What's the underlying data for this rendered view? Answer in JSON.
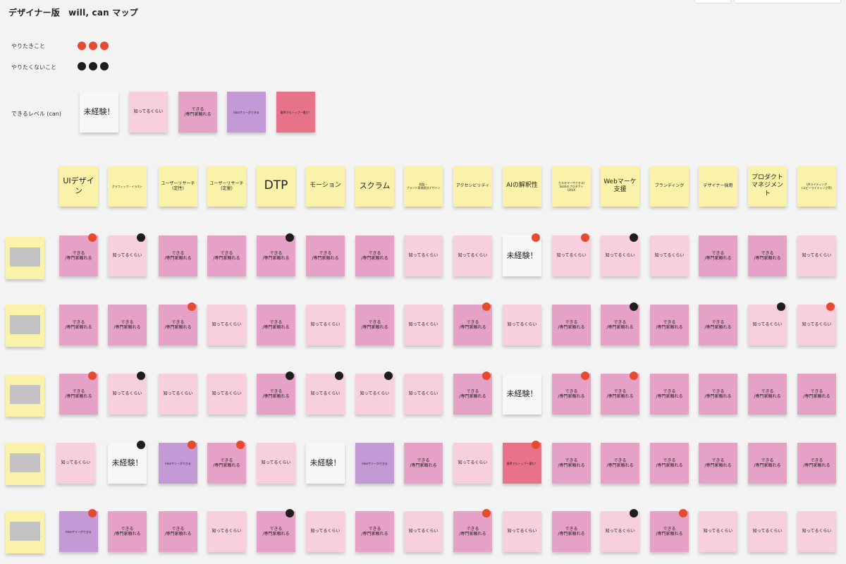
{
  "board": {
    "title": "デザイナー版　will, can マップ"
  },
  "legend": {
    "will": {
      "label": "やりたきこと"
    },
    "wont": {
      "label": "やりたくないこと"
    },
    "can": {
      "label": "できるレベル (can)"
    }
  },
  "levels": [
    {
      "text": "未経験！",
      "color": "white"
    },
    {
      "text": "知ってるくらい",
      "color": "light"
    },
    {
      "text": "できる\n/専門家頼れる",
      "color": "mid"
    },
    {
      "text": "Ideaサリーができる",
      "color": "purple"
    },
    {
      "text": "業界でもトップ一番だ！",
      "color": "red"
    }
  ],
  "skills": [
    {
      "text": "UIデザイン",
      "size": "big"
    },
    {
      "text": "グラフィック・イラスト",
      "size": "tiny"
    },
    {
      "text": "ユーザーリサーチ\n(定性)",
      "size": "small"
    },
    {
      "text": "ユーザーリサーチ\n(定量)",
      "size": "small"
    },
    {
      "text": "DTP",
      "size": "huge"
    },
    {
      "text": "モーション",
      "size": "med"
    },
    {
      "text": "スクラム",
      "size": "big"
    },
    {
      "text": "既製・\nブランド表現設計デザイン",
      "size": "tiny"
    },
    {
      "text": "アクセシビリティ",
      "size": "small"
    },
    {
      "text": "AIの解釈性",
      "size": "med"
    },
    {
      "text": "カスタマーサクセス/\nSaaSのプロダクト\nUXUX",
      "size": "tiny"
    },
    {
      "text": "Webマーケ\n支援",
      "size": "med"
    },
    {
      "text": "ブランディング",
      "size": "small"
    },
    {
      "text": "デザイナー採用",
      "size": "small"
    },
    {
      "text": "プロダクト\nマネジメント",
      "size": "med"
    },
    {
      "text": "UXライティング\n(コピーライティング等)",
      "size": "tiny"
    }
  ],
  "rows": [
    {
      "cells": [
        {
          "level": 2,
          "pin": "red"
        },
        {
          "level": 1,
          "pin": "black"
        },
        {
          "level": 2,
          "pin": null
        },
        {
          "level": 2,
          "pin": null
        },
        {
          "level": 2,
          "pin": "black"
        },
        {
          "level": 2,
          "pin": null
        },
        {
          "level": 2,
          "pin": null
        },
        {
          "level": 1,
          "pin": null
        },
        {
          "level": 1,
          "pin": null
        },
        {
          "level": 0,
          "pin": "red"
        },
        {
          "level": 1,
          "pin": "red"
        },
        {
          "level": 1,
          "pin": "black"
        },
        {
          "level": 1,
          "pin": null
        },
        {
          "level": 2,
          "pin": null
        },
        {
          "level": 2,
          "pin": null
        },
        {
          "level": 1,
          "pin": null
        }
      ]
    },
    {
      "cells": [
        {
          "level": 2,
          "pin": null
        },
        {
          "level": 2,
          "pin": null
        },
        {
          "level": 2,
          "pin": "red"
        },
        {
          "level": 1,
          "pin": null
        },
        {
          "level": 2,
          "pin": null
        },
        {
          "level": 1,
          "pin": null
        },
        {
          "level": 2,
          "pin": null
        },
        {
          "level": 1,
          "pin": null
        },
        {
          "level": 2,
          "pin": "red"
        },
        {
          "level": 1,
          "pin": null
        },
        {
          "level": 2,
          "pin": null
        },
        {
          "level": 2,
          "pin": "black"
        },
        {
          "level": 2,
          "pin": null
        },
        {
          "level": 2,
          "pin": null
        },
        {
          "level": 1,
          "pin": "black"
        },
        {
          "level": 1,
          "pin": "red"
        }
      ]
    },
    {
      "cells": [
        {
          "level": 2,
          "pin": "red"
        },
        {
          "level": 1,
          "pin": "black"
        },
        {
          "level": 1,
          "pin": null
        },
        {
          "level": 1,
          "pin": null
        },
        {
          "level": 2,
          "pin": "black"
        },
        {
          "level": 1,
          "pin": "black"
        },
        {
          "level": 1,
          "pin": "black"
        },
        {
          "level": 1,
          "pin": null
        },
        {
          "level": 2,
          "pin": "red"
        },
        {
          "level": 0,
          "pin": null
        },
        {
          "level": 2,
          "pin": "red"
        },
        {
          "level": 2,
          "pin": "red"
        },
        {
          "level": 2,
          "pin": null
        },
        {
          "level": 2,
          "pin": null
        },
        {
          "level": 2,
          "pin": null
        },
        {
          "level": 2,
          "pin": null
        }
      ]
    },
    {
      "cells": [
        {
          "level": 1,
          "pin": null
        },
        {
          "level": 0,
          "pin": "black"
        },
        {
          "level": 3,
          "pin": "red"
        },
        {
          "level": 2,
          "pin": "red"
        },
        {
          "level": 1,
          "pin": null
        },
        {
          "level": 0,
          "pin": null
        },
        {
          "level": 3,
          "pin": null
        },
        {
          "level": 2,
          "pin": null
        },
        {
          "level": 1,
          "pin": null
        },
        {
          "level": 4,
          "pin": "red"
        },
        {
          "level": 2,
          "pin": null
        },
        {
          "level": 2,
          "pin": null
        },
        {
          "level": 2,
          "pin": null
        },
        {
          "level": 2,
          "pin": null
        },
        {
          "level": 2,
          "pin": null
        },
        {
          "level": 2,
          "pin": null
        }
      ]
    },
    {
      "cells": [
        {
          "level": 3,
          "pin": "red"
        },
        {
          "level": 2,
          "pin": null
        },
        {
          "level": 2,
          "pin": null
        },
        {
          "level": 1,
          "pin": null
        },
        {
          "level": 2,
          "pin": "black"
        },
        {
          "level": 1,
          "pin": null
        },
        {
          "level": 2,
          "pin": null
        },
        {
          "level": 1,
          "pin": null
        },
        {
          "level": 2,
          "pin": "red"
        },
        {
          "level": 1,
          "pin": null
        },
        {
          "level": 2,
          "pin": null
        },
        {
          "level": 1,
          "pin": "black"
        },
        {
          "level": 2,
          "pin": "red"
        },
        {
          "level": 1,
          "pin": null
        },
        {
          "level": 1,
          "pin": null
        },
        {
          "level": 1,
          "pin": null
        }
      ]
    }
  ]
}
